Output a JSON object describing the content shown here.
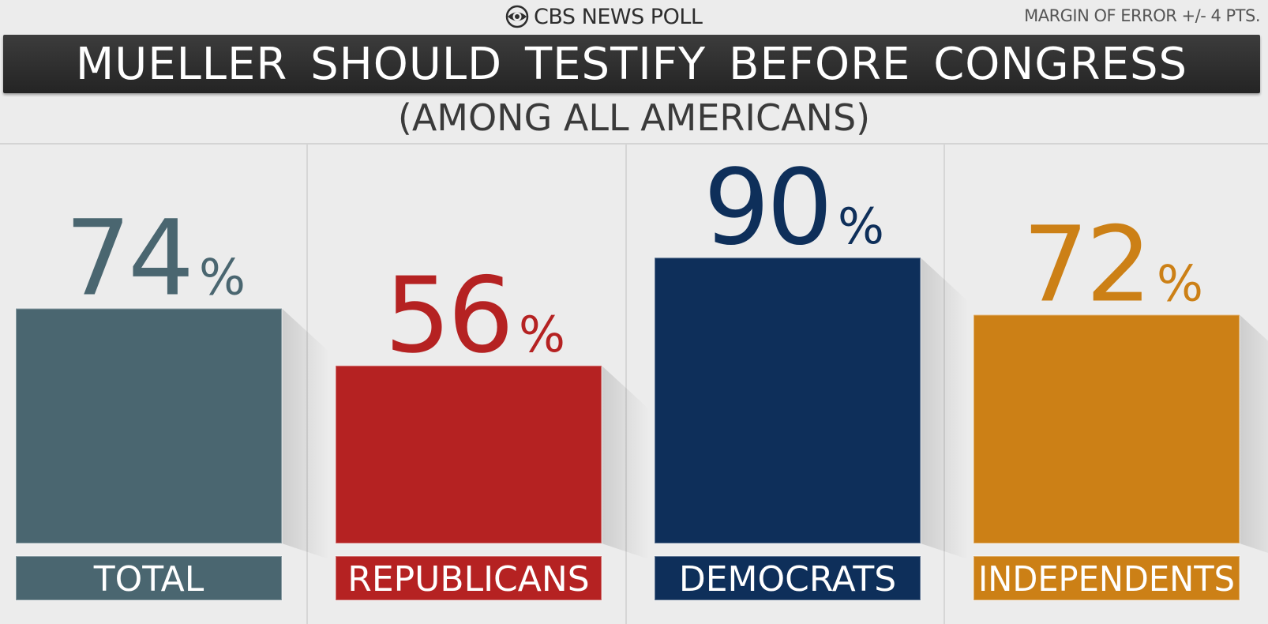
{
  "header": {
    "brand": "CBS NEWS POLL",
    "margin_of_error": "MARGIN OF ERROR +/- 4 PTS.",
    "brand_icon": "cbs-eye-icon"
  },
  "chart_data": {
    "type": "bar",
    "title": "MUELLER SHOULD TESTIFY BEFORE CONGRESS",
    "subtitle": "(AMONG ALL AMERICANS)",
    "categories": [
      "TOTAL",
      "REPUBLICANS",
      "DEMOCRATS",
      "INDEPENDENTS"
    ],
    "values": [
      74,
      56,
      90,
      72
    ],
    "value_suffix": "%",
    "value_labels": [
      "74",
      "56",
      "90",
      "72"
    ],
    "colors": [
      "#4a6670",
      "#b52222",
      "#0e2f5a",
      "#cc8016"
    ],
    "ylim": [
      0,
      100
    ],
    "grid": false,
    "legend": "none"
  }
}
